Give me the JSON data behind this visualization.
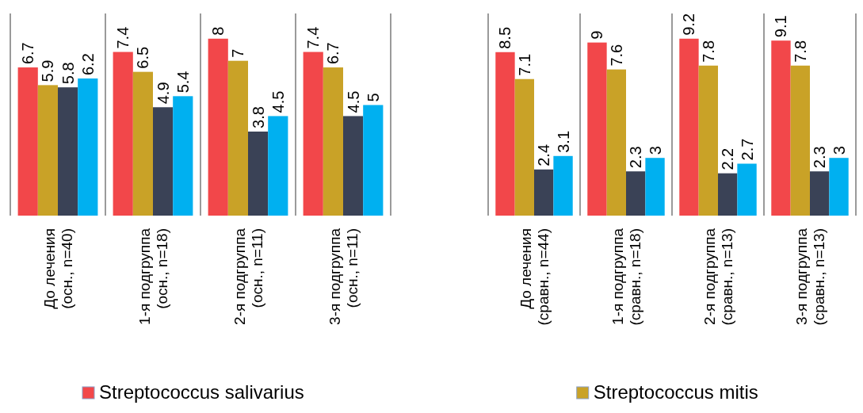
{
  "chart_data": [
    {
      "type": "bar",
      "categories": [
        "До лечения\n(осн., n=40)",
        "1-я подгруппа\n(осн., n=18)",
        "2-я подгруппа\n(осн., n=11)",
        "3-я подгруппа\n(осн., n=11)"
      ],
      "series": [
        {
          "name": "Streptococcus salivarius",
          "color": "#f2474a",
          "values": [
            6.7,
            7.4,
            8,
            7.4
          ]
        },
        {
          "color": "#c9a227",
          "values": [
            5.9,
            6.5,
            7,
            6.7
          ]
        },
        {
          "color": "#3a4256",
          "values": [
            5.8,
            4.9,
            3.8,
            4.5
          ]
        },
        {
          "color": "#00b0f0",
          "values": [
            6.2,
            5.4,
            4.5,
            5
          ]
        }
      ],
      "data_labels": true,
      "legend": "bottom",
      "grid": false
    },
    {
      "type": "bar",
      "categories": [
        "До лечения\n(сравн., n=44)",
        "1-я подгруппа\n(сравн., n=18)",
        "2-я подгруппа\n(сравн., n=13)",
        "3-я подгруппа\n(сравн., n=13)"
      ],
      "series": [
        {
          "color": "#f2474a",
          "values": [
            8.5,
            9,
            9.2,
            9.1
          ]
        },
        {
          "name": "Streptococcus mitis",
          "color": "#c9a227",
          "values": [
            7.1,
            7.6,
            7.8,
            7.8
          ]
        },
        {
          "color": "#3a4256",
          "values": [
            2.4,
            2.3,
            2.2,
            2.3
          ]
        },
        {
          "color": "#00b0f0",
          "values": [
            3.1,
            3,
            2.7,
            3
          ]
        }
      ],
      "data_labels": true,
      "legend": "bottom",
      "grid": false
    }
  ]
}
